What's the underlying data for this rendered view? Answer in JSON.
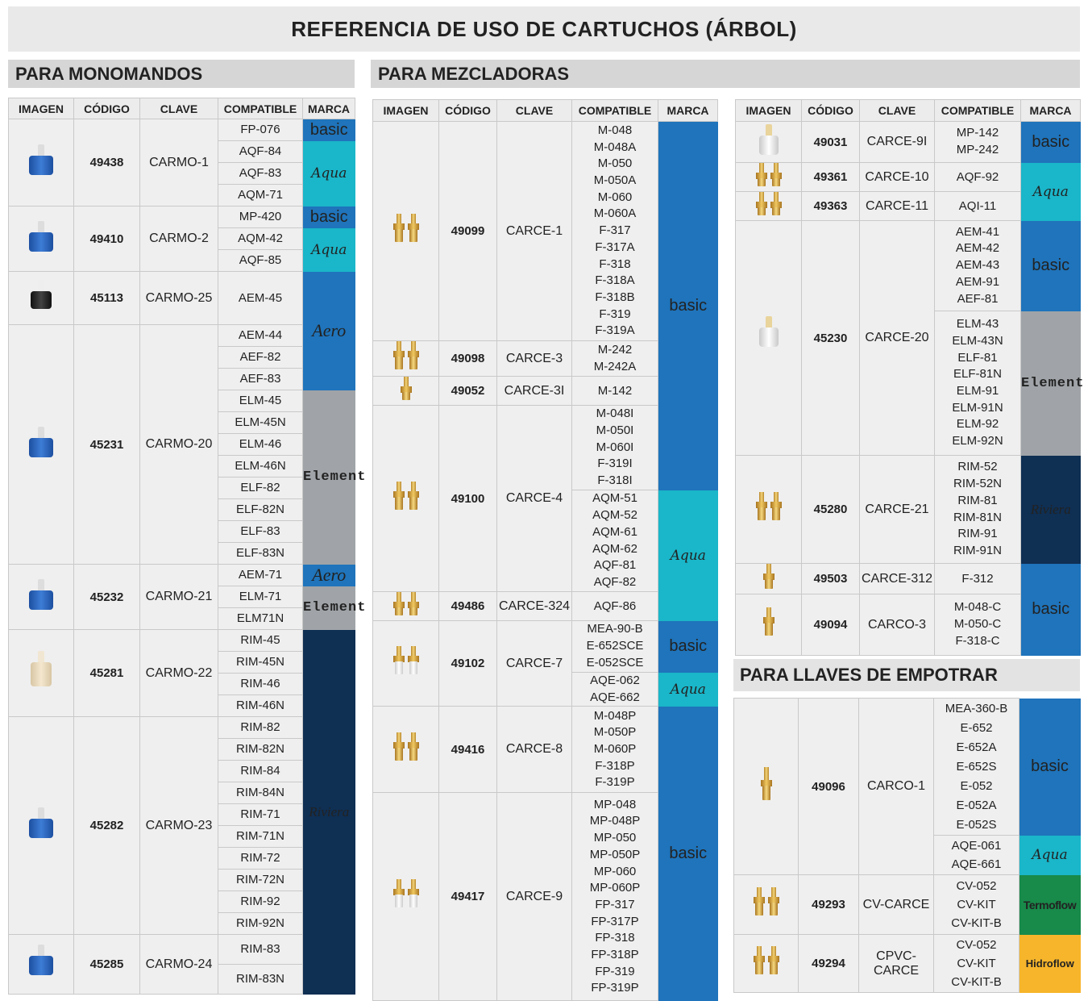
{
  "title": "REFERENCIA DE USO DE CARTUCHOS (ÁRBOL)",
  "sections": {
    "monomandos": "PARA MONOMANDOS",
    "mezcladoras": "PARA MEZCLADORAS",
    "empotrar": "PARA LLAVES DE EMPOTRAR"
  },
  "headers": {
    "imagen": "IMAGEN",
    "codigo": "CÓDIGO",
    "clave": "CLAVE",
    "compatible": "COMPATIBLE",
    "marca": "MARCA"
  },
  "brands": {
    "basic": "basic",
    "aqua": "Aqua",
    "aero": "Aero",
    "element": "Element",
    "riviera": "Riviera",
    "termoflow": "Termoflow",
    "hidroflow": "Hidroflow"
  },
  "monomandos": [
    {
      "codigo": "49438",
      "clave": "CARMO-1",
      "compatible": [
        "FP-076",
        "AQF-84",
        "AQF-83",
        "AQM-71"
      ]
    },
    {
      "codigo": "49410",
      "clave": "CARMO-2",
      "compatible": [
        "MP-420",
        "AQM-42",
        "AQF-85"
      ]
    },
    {
      "codigo": "45113",
      "clave": "CARMO-25",
      "compatible": [
        "AEM-45"
      ]
    },
    {
      "codigo": "45231",
      "clave": "CARMO-20",
      "compatible": [
        "AEM-44",
        "AEF-82",
        "AEF-83",
        "ELM-45",
        "ELM-45N",
        "ELM-46",
        "ELM-46N",
        "ELF-82",
        "ELF-82N",
        "ELF-83",
        "ELF-83N"
      ]
    },
    {
      "codigo": "45232",
      "clave": "CARMO-21",
      "compatible": [
        "AEM-71",
        "ELM-71",
        "ELM71N"
      ]
    },
    {
      "codigo": "45281",
      "clave": "CARMO-22",
      "compatible": [
        "RIM-45",
        "RIM-45N",
        "RIM-46",
        "RIM-46N"
      ]
    },
    {
      "codigo": "45282",
      "clave": "CARMO-23",
      "compatible": [
        "RIM-82",
        "RIM-82N",
        "RIM-84",
        "RIM-84N",
        "RIM-71",
        "RIM-71N",
        "RIM-72",
        "RIM-72N",
        "RIM-92",
        "RIM-92N"
      ]
    },
    {
      "codigo": "45285",
      "clave": "CARMO-24",
      "compatible": [
        "RIM-83",
        "RIM-83N"
      ]
    }
  ],
  "mezcladoras_a": [
    {
      "codigo": "49099",
      "clave": "CARCE-1",
      "compatible": [
        "M-048",
        "M-048A",
        "M-050",
        "M-050A",
        "M-060",
        "M-060A",
        "F-317",
        "F-317A",
        "F-318",
        "F-318A",
        "F-318B",
        "F-319",
        "F-319A"
      ]
    },
    {
      "codigo": "49098",
      "clave": "CARCE-3",
      "compatible": [
        "M-242",
        "M-242A"
      ]
    },
    {
      "codigo": "49052",
      "clave": "CARCE-3I",
      "compatible": [
        "M-142"
      ]
    },
    {
      "codigo": "49100",
      "clave": "CARCE-4",
      "compatible": [
        "M-048I",
        "M-050I",
        "M-060I",
        "F-319I",
        "F-318I",
        "AQM-51",
        "AQM-52",
        "AQM-61",
        "AQM-62",
        "AQF-81",
        "AQF-82"
      ]
    },
    {
      "codigo": "49486",
      "clave": "CARCE-324",
      "compatible": [
        "AQF-86"
      ]
    },
    {
      "codigo": "49102",
      "clave": "CARCE-7",
      "compatible": [
        "MEA-90-B",
        "E-652SCE",
        "E-052SCE",
        "AQE-062",
        "AQE-662"
      ]
    },
    {
      "codigo": "49416",
      "clave": "CARCE-8",
      "compatible": [
        "M-048P",
        "M-050P",
        "M-060P",
        "F-318P",
        "F-319P"
      ]
    },
    {
      "codigo": "49417",
      "clave": "CARCE-9",
      "compatible": [
        "MP-048",
        "MP-048P",
        "MP-050",
        "MP-050P",
        "MP-060",
        "MP-060P",
        "FP-317",
        "FP-317P",
        "FP-318",
        "FP-318P",
        "FP-319",
        "FP-319P"
      ]
    }
  ],
  "mezcladoras_b": [
    {
      "codigo": "49031",
      "clave": "CARCE-9I",
      "compatible": [
        "MP-142",
        "MP-242"
      ]
    },
    {
      "codigo": "49361",
      "clave": "CARCE-10",
      "compatible": [
        "AQF-92"
      ]
    },
    {
      "codigo": "49363",
      "clave": "CARCE-11",
      "compatible": [
        "AQI-11"
      ]
    },
    {
      "codigo": "45230",
      "clave": "CARCE-20",
      "compatible": [
        "AEM-41",
        "AEM-42",
        "AEM-43",
        "AEM-91",
        "AEF-81",
        "ELM-43",
        "ELM-43N",
        "ELF-81",
        "ELF-81N",
        "ELM-91",
        "ELM-91N",
        "ELM-92",
        "ELM-92N"
      ]
    },
    {
      "codigo": "45280",
      "clave": "CARCE-21",
      "compatible": [
        "RIM-52",
        "RIM-52N",
        "RIM-81",
        "RIM-81N",
        "RIM-91",
        "RIM-91N"
      ]
    },
    {
      "codigo": "49503",
      "clave": "CARCE-312",
      "compatible": [
        "F-312"
      ]
    },
    {
      "codigo": "49094",
      "clave": "CARCO-3",
      "compatible": [
        "M-048-C",
        "M-050-C",
        "F-318-C"
      ]
    }
  ],
  "empotrar": [
    {
      "codigo": "49096",
      "clave": "CARCO-1",
      "compatible": [
        "MEA-360-B",
        "E-652",
        "E-652A",
        "E-652S",
        "E-052",
        "E-052A",
        "E-052S",
        "AQE-061",
        "AQE-661"
      ]
    },
    {
      "codigo": "49293",
      "clave": "CV-CARCE",
      "compatible": [
        "CV-052",
        "CV-KIT",
        "CV-KIT-B"
      ]
    },
    {
      "codigo": "49294",
      "clave": "CPVC-CARCE",
      "compatible": [
        "CV-052",
        "CV-KIT",
        "CV-KIT-B"
      ]
    }
  ],
  "colors": {
    "basic": "#1f74bb",
    "aqua": "#1ab6c9",
    "element": "#a0a4a8",
    "riviera": "#0f2f53",
    "termoflow": "#188a4a",
    "hidroflow": "#f6b52b"
  }
}
